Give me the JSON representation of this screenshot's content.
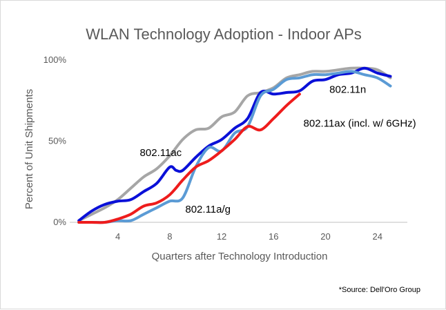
{
  "chart_data": {
    "type": "line",
    "title": "WLAN Technology Adoption - Indoor APs",
    "xlabel": "Quarters after Technology Introduction",
    "ylabel": "Percent of Unit Shipments",
    "xlim": [
      0.3,
      26.3
    ],
    "ylim": [
      0,
      100
    ],
    "x_ticks": [
      4,
      8,
      12,
      16,
      20,
      24
    ],
    "y_ticks": [
      {
        "value": 0,
        "label": "0%"
      },
      {
        "value": 50,
        "label": "50%"
      },
      {
        "value": 100,
        "label": "100%"
      }
    ],
    "grid": false,
    "legend": "none",
    "source": "*Source: Dell'Oro Group",
    "series": [
      {
        "name": "802.11ac",
        "color": "#a6a6a6",
        "x": [
          1,
          2,
          3,
          4,
          5,
          6,
          7,
          8,
          9,
          10,
          11,
          12,
          13,
          14,
          15,
          16,
          17,
          18,
          19,
          20,
          21,
          22,
          23,
          24,
          25
        ],
        "y": [
          1,
          5,
          9,
          14,
          21,
          28,
          33,
          41,
          51,
          57,
          58,
          65,
          68,
          78,
          80,
          83,
          89,
          91,
          93,
          93,
          94,
          95,
          95,
          94,
          89
        ]
      },
      {
        "name": "802.11n",
        "color": "#0a10d8",
        "x": [
          1,
          2,
          3,
          4,
          5,
          6,
          7,
          8,
          8.5,
          9,
          10,
          11,
          12,
          13,
          14,
          15,
          16,
          17,
          18,
          19,
          20,
          21,
          22,
          23,
          24,
          25
        ],
        "y": [
          1,
          7,
          11,
          13,
          14,
          19,
          24,
          34,
          32,
          32,
          40,
          47,
          51,
          58,
          64,
          80,
          79,
          80,
          81,
          87,
          88,
          91,
          92,
          95,
          92,
          90
        ]
      },
      {
        "name": "802.11a/g",
        "color": "#5b9bd5",
        "x": [
          1,
          2,
          3,
          4,
          5,
          6,
          7,
          8,
          9,
          10,
          11,
          12,
          13,
          14,
          15,
          16,
          17,
          18,
          19,
          20,
          21,
          22,
          23,
          24,
          25
        ],
        "y": [
          0,
          0,
          0,
          1,
          1,
          5,
          9,
          13,
          15,
          34,
          46,
          44,
          55,
          59,
          78,
          82,
          88,
          89,
          91,
          91,
          92,
          93,
          91,
          89,
          84
        ]
      },
      {
        "name": "802.11ax (incl. w/ 6GHz)",
        "color": "#ee1c1c",
        "x": [
          1,
          2,
          3,
          4,
          5,
          6,
          7,
          8,
          9,
          10,
          11,
          12,
          13,
          14,
          15,
          16,
          17,
          18
        ],
        "y": [
          0,
          0,
          0,
          2,
          5,
          10,
          12,
          17,
          26,
          34,
          38,
          44,
          51,
          59,
          57,
          64,
          72,
          79
        ]
      }
    ],
    "annotations": [
      {
        "text": "802.11ac",
        "x": 5.7,
        "y": 43
      },
      {
        "text": "802.11a/g",
        "x": 9.2,
        "y": 8
      },
      {
        "text": "802.11ax (incl. w/ 6GHz)",
        "x": 18.3,
        "y": 61
      },
      {
        "text": "802.11n",
        "x": 20.3,
        "y": 82
      }
    ]
  }
}
